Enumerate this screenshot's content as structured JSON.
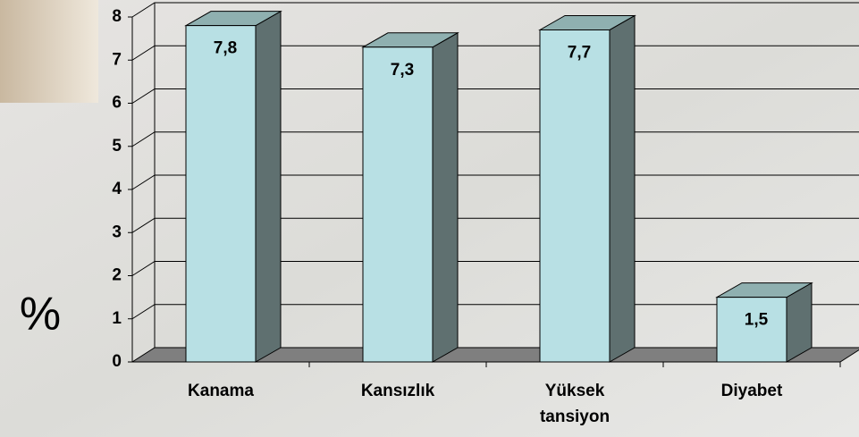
{
  "chart_data": {
    "type": "bar3d",
    "y_axis_label": "%",
    "categories": [
      "Kanama",
      "Kansızlık",
      "Yüksek tansiyon",
      "Diyabet"
    ],
    "values": [
      7.8,
      7.3,
      7.7,
      1.5
    ],
    "value_labels": [
      "7,8",
      "7,3",
      "7,7",
      "1,5"
    ],
    "color": "#b8e0e4",
    "ylim": [
      0,
      8
    ],
    "yticks": [
      0,
      1,
      2,
      3,
      4,
      5,
      6,
      7,
      8
    ],
    "grid": true
  }
}
